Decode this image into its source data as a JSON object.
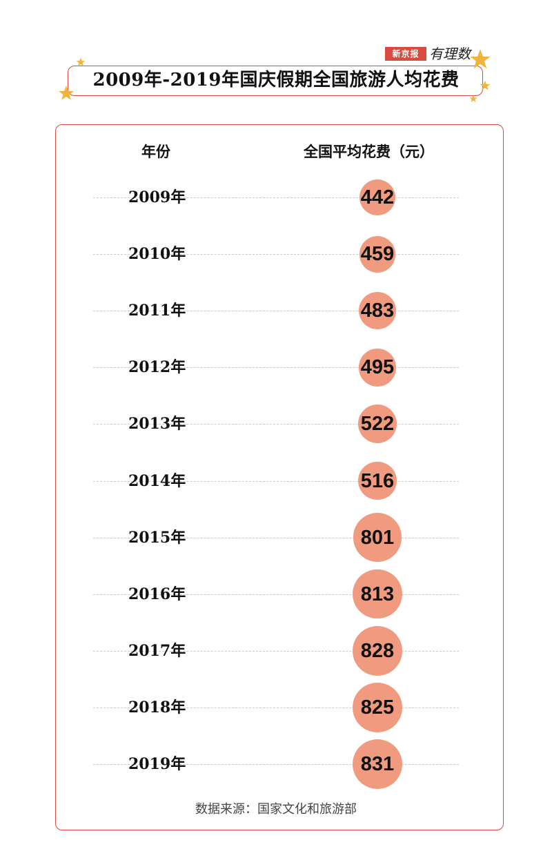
{
  "brand": {
    "name": "新京报",
    "tagline": "有理数"
  },
  "title": "2009年-2019年国庆假期全国旅游人均花费",
  "headers": {
    "year": "年份",
    "value": "全国平均花费（元）"
  },
  "source": "数据来源：国家文化和旅游部",
  "colors": {
    "accent": "#d94a3f",
    "bubble": "#f09b80",
    "star": "#f0b43c"
  },
  "chart_data": {
    "type": "table",
    "title": "2009年-2019年国庆假期全国旅游人均花费",
    "columns": [
      "年份",
      "全国平均花费（元）"
    ],
    "categories": [
      "2009年",
      "2010年",
      "2011年",
      "2012年",
      "2013年",
      "2014年",
      "2015年",
      "2016年",
      "2017年",
      "2018年",
      "2019年"
    ],
    "values": [
      442,
      459,
      483,
      495,
      522,
      516,
      801,
      813,
      828,
      825,
      831
    ]
  }
}
